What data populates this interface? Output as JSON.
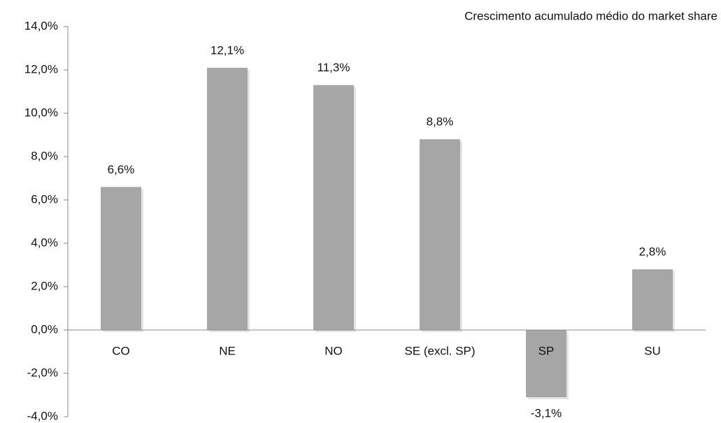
{
  "chart_data": {
    "type": "bar",
    "subtitle": "Crescimento acumulado médio do market share",
    "categories": [
      "CO",
      "NE",
      "NO",
      "SE (excl. SP)",
      "SP",
      "SU"
    ],
    "values": [
      6.6,
      12.1,
      11.3,
      8.8,
      -3.1,
      2.8
    ],
    "value_labels": [
      "6,6%",
      "12,1%",
      "11,3%",
      "8,8%",
      "-3,1%",
      "2,8%"
    ],
    "color": "#a6a6a6",
    "ylim": [
      -4,
      14
    ],
    "yticks": [
      {
        "value": -4,
        "label": "-4,0%"
      },
      {
        "value": -2,
        "label": "-2,0%"
      },
      {
        "value": 0,
        "label": "0,0%"
      },
      {
        "value": 2,
        "label": "2,0%"
      },
      {
        "value": 4,
        "label": "4,0%"
      },
      {
        "value": 6,
        "label": "6,0%"
      },
      {
        "value": 8,
        "label": "8,0%"
      },
      {
        "value": 10,
        "label": "10,0%"
      },
      {
        "value": 12,
        "label": "12,0%"
      },
      {
        "value": 14,
        "label": "14,0%"
      }
    ],
    "grid": false
  }
}
